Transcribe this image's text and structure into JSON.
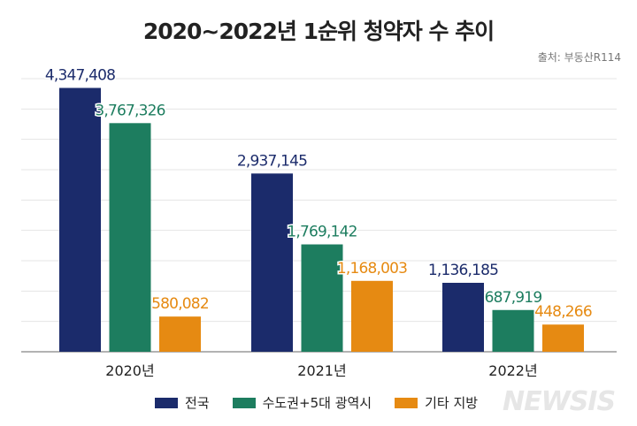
{
  "chart_data": {
    "type": "bar",
    "title": "2020~2022년 1순위 청약자 수 추이",
    "source": "출처: 부동산R114",
    "categories": [
      "2020년",
      "2021년",
      "2022년"
    ],
    "series": [
      {
        "name": "전국",
        "color": "#1b2b6b",
        "values": [
          4347408,
          2937145,
          1136185
        ],
        "labels": [
          "4,347,408",
          "2,937,145",
          "1,136,185"
        ]
      },
      {
        "name": "수도권+5대 광역시",
        "color": "#1d7d5f",
        "values": [
          3767326,
          1769142,
          687919
        ],
        "labels": [
          "3,767,326",
          "1,769,142",
          "687,919"
        ]
      },
      {
        "name": "기타 지방",
        "color": "#e68a12",
        "values": [
          580082,
          1168003,
          448266
        ],
        "labels": [
          "580,082",
          "1,168,003",
          "448,266"
        ]
      }
    ],
    "ylim": [
      0,
      4500000
    ],
    "grid": true,
    "legend": "bottom",
    "xlabel": "",
    "ylabel": ""
  },
  "watermark": "NEWSIS"
}
